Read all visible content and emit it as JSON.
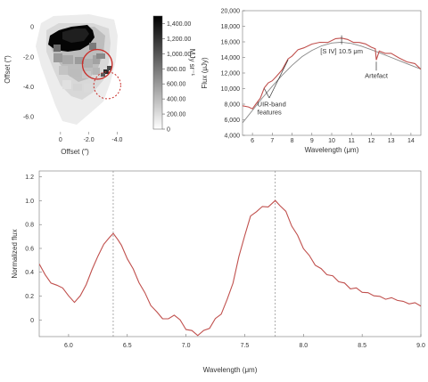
{
  "chart_data": [
    {
      "type": "heatmap",
      "xlabel": "Offset (″)",
      "ylabel": "Offset (″)",
      "xticks": [
        "0",
        "-2.0",
        "-4.0"
      ],
      "xlim": [
        1.5,
        -5.8
      ],
      "yticks": [
        "0",
        "-2.0",
        "-4.0",
        "-6.0"
      ],
      "ylim": [
        1.2,
        -7.0
      ],
      "colorbar": {
        "label": "MJy sr⁻¹",
        "ticks": [
          "1,400.00",
          "1,200.00",
          "1,000.00",
          "800.00",
          "600.00",
          "400.00",
          "200.00",
          "0"
        ],
        "range": [
          0,
          1500
        ],
        "colors": [
          "#ffffff",
          "#000000"
        ]
      },
      "circles": [
        {
          "style": "solid",
          "x": -2.6,
          "y": -2.5,
          "r": 1.05
        },
        {
          "style": "dashed",
          "x": -3.3,
          "y": -3.9,
          "r": 0.95
        }
      ]
    },
    {
      "type": "line",
      "xlabel": "Wavelength (μm)",
      "ylabel": "Flux (μJy)",
      "xlim": [
        5.5,
        14.5
      ],
      "ylim": [
        4000,
        20000
      ],
      "xticks": [
        6,
        7,
        8,
        9,
        10,
        11,
        12,
        13,
        14
      ],
      "yticks": [
        "4,000",
        "6,000",
        "8,000",
        "10,000",
        "12,000",
        "14,000",
        "16,000",
        "18,000",
        "20,000"
      ],
      "series": [
        {
          "color": "#c0504d",
          "style": "observed spectrum",
          "x": [
            5.5,
            5.8,
            6.0,
            6.2,
            6.4,
            6.6,
            6.8,
            7.0,
            7.2,
            7.5,
            7.8,
            8.0,
            8.3,
            8.6,
            9.0,
            9.4,
            9.8,
            10.2,
            10.5,
            10.8,
            11.1,
            11.4,
            11.7,
            12.0,
            12.2,
            12.25,
            12.4,
            12.7,
            13.0,
            13.4,
            13.8,
            14.2,
            14.5
          ],
          "y": [
            7800,
            7600,
            7500,
            8000,
            8900,
            10000,
            10800,
            11000,
            11500,
            12500,
            13700,
            14300,
            14900,
            15300,
            15700,
            15900,
            16000,
            16300,
            16600,
            16200,
            16000,
            15900,
            15700,
            15400,
            15000,
            13800,
            14700,
            14600,
            14500,
            13900,
            13500,
            13100,
            12600
          ]
        },
        {
          "color": "#888888",
          "style": "continuum fit",
          "x": [
            5.5,
            6.0,
            6.5,
            7.0,
            7.5,
            8.0,
            8.5,
            9.0,
            9.5,
            10.0,
            10.5,
            11.0,
            11.5,
            12.0,
            12.5,
            13.0,
            13.5,
            14.0,
            14.5
          ],
          "y": [
            5600,
            7200,
            8800,
            10300,
            11700,
            13000,
            14100,
            14900,
            15500,
            15850,
            15950,
            15800,
            15450,
            15000,
            14500,
            14000,
            13500,
            13000,
            12500
          ]
        }
      ],
      "annotations": [
        {
          "text": "[S IV] 10.5 μm",
          "x": 10.5,
          "y": 16600
        },
        {
          "text": "Artefact",
          "x": 12.25,
          "y": 13800
        },
        {
          "text": "UIR-band",
          "x": 7.2,
          "y": 10800
        },
        {
          "text": "features",
          "x": 7.2,
          "y": 10800
        }
      ]
    },
    {
      "type": "line",
      "xlabel": "Wavelength (μm)",
      "ylabel": "Normalized flux",
      "xlim": [
        5.75,
        9.0
      ],
      "ylim": [
        -0.14,
        1.25
      ],
      "xticks": [
        "6.0",
        "6.5",
        "7.0",
        "7.5",
        "8.0",
        "8.5",
        "9.0"
      ],
      "yticks": [
        "0",
        "0.2",
        "0.4",
        "0.6",
        "0.8",
        "1.0",
        "1.2"
      ],
      "vlines": [
        6.38,
        7.76
      ],
      "series": [
        {
          "color": "#c0504d",
          "x": [
            5.75,
            5.8,
            5.85,
            5.9,
            5.95,
            6.0,
            6.05,
            6.1,
            6.15,
            6.2,
            6.25,
            6.3,
            6.35,
            6.38,
            6.42,
            6.45,
            6.5,
            6.55,
            6.6,
            6.65,
            6.7,
            6.75,
            6.8,
            6.85,
            6.9,
            6.95,
            7.0,
            7.05,
            7.1,
            7.15,
            7.2,
            7.25,
            7.3,
            7.35,
            7.4,
            7.45,
            7.5,
            7.55,
            7.6,
            7.65,
            7.7,
            7.76,
            7.8,
            7.85,
            7.9,
            7.95,
            8.0,
            8.05,
            8.1,
            8.15,
            8.2,
            8.25,
            8.3,
            8.35,
            8.4,
            8.45,
            8.5,
            8.55,
            8.6,
            8.65,
            8.7,
            8.75,
            8.8,
            8.85,
            8.9,
            8.95,
            9.0
          ],
          "y": [
            0.47,
            0.38,
            0.31,
            0.29,
            0.27,
            0.2,
            0.15,
            0.2,
            0.3,
            0.42,
            0.54,
            0.63,
            0.7,
            0.72,
            0.68,
            0.62,
            0.52,
            0.42,
            0.32,
            0.22,
            0.13,
            0.06,
            0.02,
            0.0,
            0.05,
            -0.01,
            -0.07,
            -0.1,
            -0.12,
            -0.1,
            -0.06,
            0.0,
            0.06,
            0.16,
            0.32,
            0.52,
            0.72,
            0.86,
            0.92,
            0.94,
            0.96,
            0.99,
            0.97,
            0.9,
            0.8,
            0.7,
            0.61,
            0.53,
            0.47,
            0.42,
            0.39,
            0.36,
            0.33,
            0.3,
            0.27,
            0.26,
            0.24,
            0.22,
            0.21,
            0.19,
            0.18,
            0.18,
            0.17,
            0.15,
            0.14,
            0.14,
            0.12
          ]
        }
      ]
    }
  ]
}
